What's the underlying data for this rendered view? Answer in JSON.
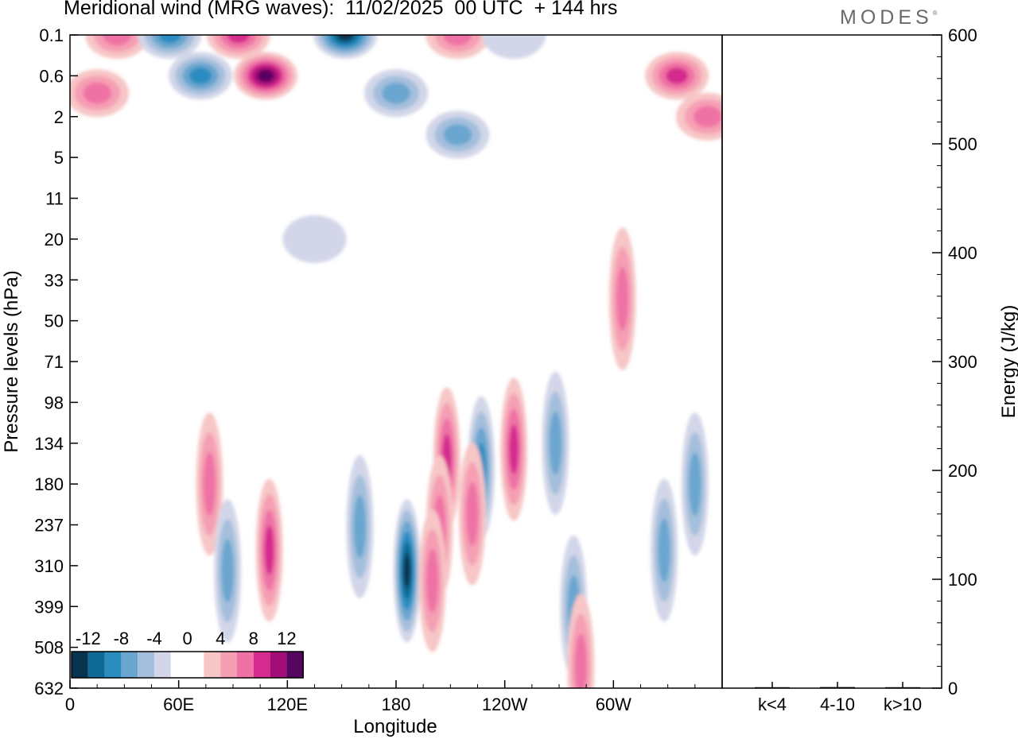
{
  "header": {
    "title": "Meridional wind (MRG waves):  11/02/2025  00 UTC  + 144 hrs",
    "brand": "MODES",
    "brand_mark": "®"
  },
  "chart_data": [
    {
      "type": "heatmap",
      "title": "Meridional wind (MRG waves):  11/02/2025  00 UTC  + 144 hrs",
      "xlabel": "Longitude",
      "ylabel": "Pressure levels (hPa)",
      "x_ticks": [
        "0",
        "60E",
        "120E",
        "180",
        "120W",
        "60W"
      ],
      "x_tick_degrees": [
        0,
        60,
        120,
        180,
        240,
        300
      ],
      "xlim": [
        0,
        360
      ],
      "y_ticks": [
        "0.1",
        "0.6",
        "2",
        "5",
        "11",
        "20",
        "33",
        "50",
        "71",
        "98",
        "134",
        "180",
        "237",
        "310",
        "399",
        "508",
        "632"
      ],
      "y_order": "top-to-bottom",
      "colorbar": {
        "labels": [
          "-12",
          "-8",
          "-4",
          "0",
          "4",
          "8",
          "12"
        ],
        "placement": "bottom-left",
        "colors": [
          "#08334e",
          "#0e6a95",
          "#2b8cc0",
          "#6aa6cf",
          "#a4bfdc",
          "#d2d6e8",
          "#ffffff",
          "#ffffff",
          "#f7c6c6",
          "#f59fb4",
          "#ef72a4",
          "#d52a8e",
          "#a20e78",
          "#560561"
        ]
      },
      "features": [
        {
          "lon": 15,
          "level": "1",
          "value": 8
        },
        {
          "lon": 26,
          "level": "0.1",
          "value": 8
        },
        {
          "lon": 55,
          "level": "0.1",
          "value": -12
        },
        {
          "lon": 72,
          "level": "0.6",
          "value": -12
        },
        {
          "lon": 93,
          "level": "0.1",
          "value": 12
        },
        {
          "lon": 108,
          "level": "0.6",
          "value": 16
        },
        {
          "lon": 152,
          "level": "0.1",
          "value": -16
        },
        {
          "lon": 180,
          "level": "1",
          "value": -8
        },
        {
          "lon": 214,
          "level": "3",
          "value": -8
        },
        {
          "lon": 214,
          "level": "0.1",
          "value": 8
        },
        {
          "lon": 245,
          "level": "0.1",
          "value": -4
        },
        {
          "lon": 335,
          "level": "0.6",
          "value": 12
        },
        {
          "lon": 352,
          "level": "2",
          "value": 8
        },
        {
          "lon": 135,
          "level": "20",
          "value": -4
        },
        {
          "lon": 305,
          "level": "40",
          "value": 8
        },
        {
          "lon": 77,
          "level": "180",
          "value": 8
        },
        {
          "lon": 208,
          "level": "150",
          "value": 12
        },
        {
          "lon": 227,
          "level": "160",
          "value": -12
        },
        {
          "lon": 245,
          "level": "140",
          "value": 12
        },
        {
          "lon": 268,
          "level": "134",
          "value": -8
        },
        {
          "lon": 222,
          "level": "220",
          "value": 8
        },
        {
          "lon": 204,
          "level": "240",
          "value": 8
        },
        {
          "lon": 186,
          "level": "320",
          "value": -16
        },
        {
          "lon": 200,
          "level": "340",
          "value": 8
        },
        {
          "lon": 160,
          "level": "240",
          "value": -8
        },
        {
          "lon": 110,
          "level": "280",
          "value": 12
        },
        {
          "lon": 87,
          "level": "320",
          "value": -8
        },
        {
          "lon": 328,
          "level": "280",
          "value": -8
        },
        {
          "lon": 345,
          "level": "180",
          "value": -8
        },
        {
          "lon": 278,
          "level": "400",
          "value": -8
        },
        {
          "lon": 282,
          "level": "560",
          "value": 8
        }
      ]
    },
    {
      "type": "bar",
      "ylabel": "Energy (J/kg)",
      "categories": [
        "k<4",
        "4-10",
        "k>10"
      ],
      "values": [
        0,
        1,
        0
      ],
      "ylim": [
        0,
        600
      ],
      "y_ticks": [
        "0",
        "100",
        "200",
        "300",
        "400",
        "500",
        "600"
      ]
    }
  ]
}
